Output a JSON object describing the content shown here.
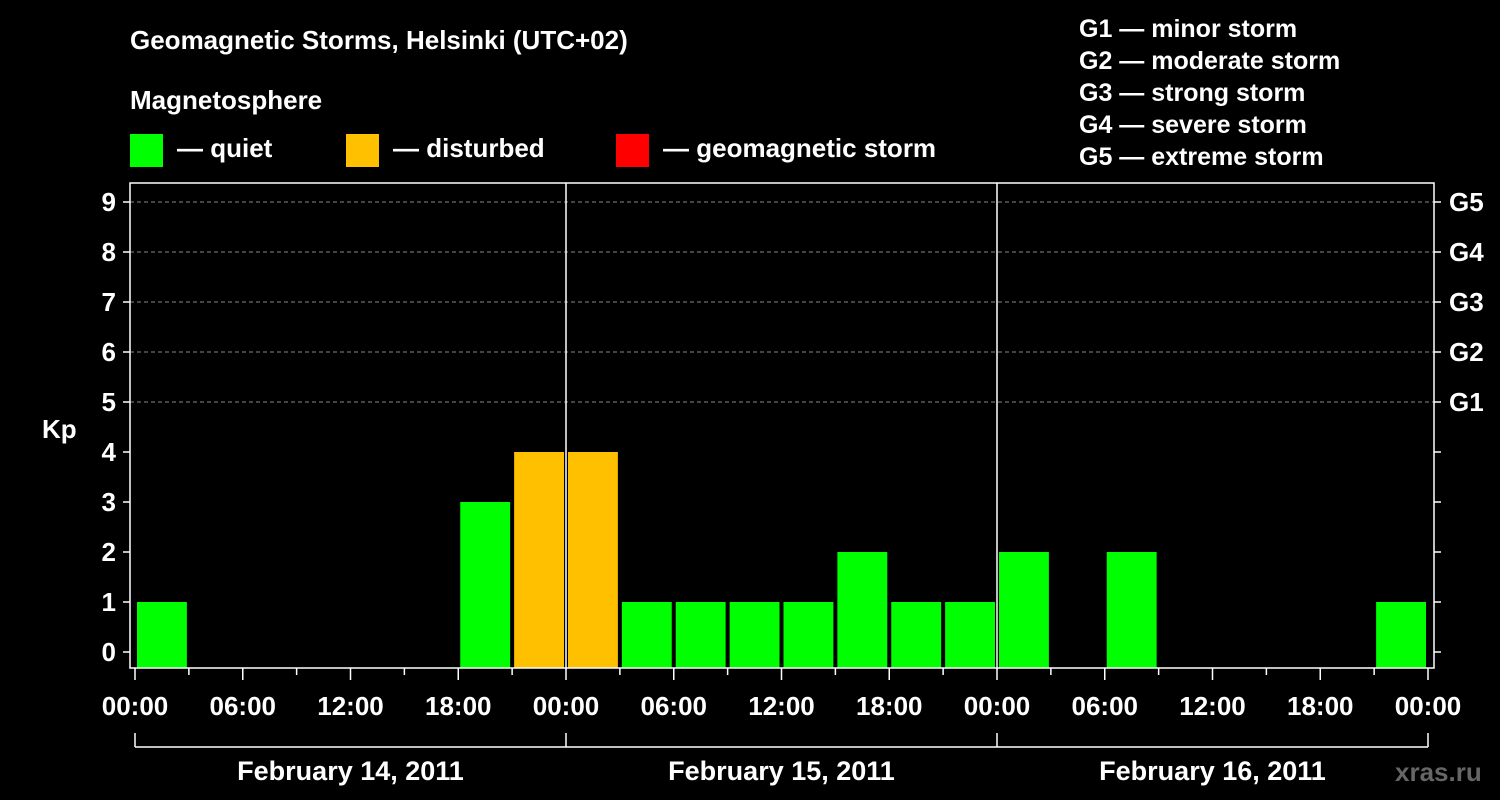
{
  "chart_data": {
    "type": "bar",
    "title": "Geomagnetic Storms, Helsinki (UTC+02)",
    "ylabel": "Kp",
    "ylim": [
      0,
      9
    ],
    "y_ticks": [
      "0",
      "1",
      "2",
      "3",
      "4",
      "5",
      "6",
      "7",
      "8",
      "9"
    ],
    "storm_ticks": [
      {
        "kp": 5,
        "label": "G1"
      },
      {
        "kp": 6,
        "label": "G2"
      },
      {
        "kp": 7,
        "label": "G3"
      },
      {
        "kp": 8,
        "label": "G4"
      },
      {
        "kp": 9,
        "label": "G5"
      }
    ],
    "x_tick_labels": [
      "00:00",
      "06:00",
      "12:00",
      "18:00",
      "00:00",
      "06:00",
      "12:00",
      "18:00",
      "00:00",
      "06:00",
      "12:00",
      "18:00",
      "00:00"
    ],
    "day_labels": [
      "February 14, 2011",
      "February 15, 2011",
      "February 16, 2011"
    ],
    "bars": [
      {
        "start_hour": 0,
        "kp": 1,
        "status": "quiet"
      },
      {
        "start_hour": 18,
        "kp": 3,
        "status": "quiet"
      },
      {
        "start_hour": 21,
        "kp": 4,
        "status": "disturbed"
      },
      {
        "start_hour": 24,
        "kp": 4,
        "status": "disturbed"
      },
      {
        "start_hour": 27,
        "kp": 1,
        "status": "quiet"
      },
      {
        "start_hour": 30,
        "kp": 1,
        "status": "quiet"
      },
      {
        "start_hour": 33,
        "kp": 1,
        "status": "quiet"
      },
      {
        "start_hour": 36,
        "kp": 1,
        "status": "quiet"
      },
      {
        "start_hour": 39,
        "kp": 2,
        "status": "quiet"
      },
      {
        "start_hour": 42,
        "kp": 1,
        "status": "quiet"
      },
      {
        "start_hour": 45,
        "kp": 1,
        "status": "quiet"
      },
      {
        "start_hour": 48,
        "kp": 2,
        "status": "quiet"
      },
      {
        "start_hour": 54,
        "kp": 2,
        "status": "quiet"
      },
      {
        "start_hour": 69,
        "kp": 1,
        "status": "quiet"
      }
    ],
    "grid": true
  },
  "legend": {
    "heading": "Magnetosphere",
    "items": [
      {
        "status": "quiet",
        "label": "— quiet",
        "color": "#00ff00"
      },
      {
        "status": "disturbed",
        "label": "— disturbed",
        "color": "#ffc000"
      },
      {
        "status": "storm",
        "label": "— geomagnetic storm",
        "color": "#ff0000"
      }
    ]
  },
  "storm_scale": [
    "G1 — minor storm",
    "G2 — moderate storm",
    "G3 — strong storm",
    "G4 — severe storm",
    "G5 — extreme storm"
  ],
  "watermark": "xras.ru"
}
